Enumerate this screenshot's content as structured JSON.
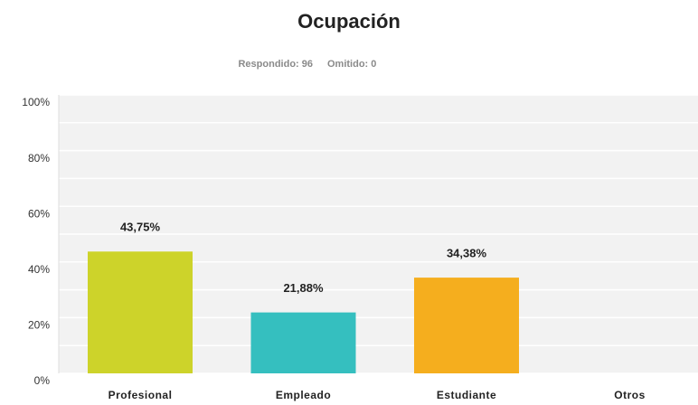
{
  "chart_data": {
    "type": "bar",
    "title": "Ocupación",
    "answered": "Respondido: 96",
    "skipped": "Omitido: 0",
    "categories": [
      "Profesional",
      "Empleado",
      "Estudiante",
      "Otros"
    ],
    "values": [
      43.75,
      21.88,
      34.38,
      0
    ],
    "value_labels": [
      "43,75%",
      "21,88%",
      "34,38%",
      null
    ],
    "colors": [
      "#cdd32a",
      "#35bfbf",
      "#f5ae1e",
      "#999999"
    ],
    "ylim": [
      0,
      100
    ],
    "yticks": [
      {
        "value": 0,
        "label": "0%"
      },
      {
        "value": 20,
        "label": "20%"
      },
      {
        "value": 40,
        "label": "40%"
      },
      {
        "value": 60,
        "label": "60%"
      },
      {
        "value": 80,
        "label": "80%"
      },
      {
        "value": 100,
        "label": "100%"
      }
    ],
    "yminor": [
      10,
      30,
      50,
      70,
      90
    ],
    "grid": true
  }
}
